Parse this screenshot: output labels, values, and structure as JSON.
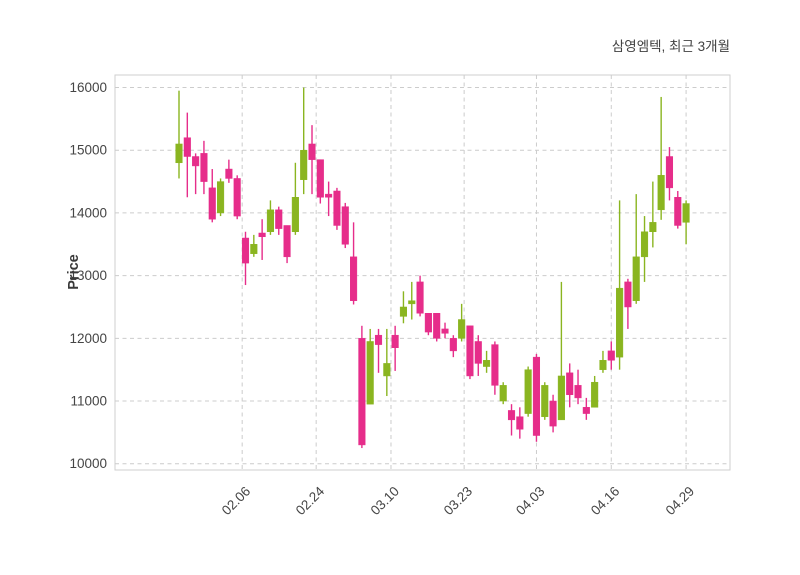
{
  "title": "삼영엠텍, 최근 3개월",
  "y_axis": {
    "label": "Price",
    "ticks": [
      10000,
      11000,
      12000,
      13000,
      14000,
      15000,
      16000
    ]
  },
  "x_axis": {
    "ticks": [
      {
        "label": "02.06",
        "pos": 7.6
      },
      {
        "label": "02.24",
        "pos": 16.5
      },
      {
        "label": "03.10",
        "pos": 25.5
      },
      {
        "label": "03.23",
        "pos": 34.3
      },
      {
        "label": "04.03",
        "pos": 43.0
      },
      {
        "label": "04.16",
        "pos": 52.0
      },
      {
        "label": "04.29",
        "pos": 61.0
      }
    ]
  },
  "chart_data": {
    "type": "candlestick",
    "title": "삼영엠텍, 최근 3개월",
    "ylabel": "Price",
    "ylim": [
      9900,
      16200
    ],
    "grid": "dashed",
    "up_color": "#8ab520",
    "down_color": "#e62d8a",
    "grid_color": "#cccccc",
    "spine_color": "#cfcfcf",
    "candles_ohlc": [
      [
        14800,
        15950,
        14550,
        15100
      ],
      [
        15200,
        15600,
        14250,
        14900
      ],
      [
        14900,
        14950,
        14300,
        14750
      ],
      [
        14950,
        15150,
        14300,
        14500
      ],
      [
        14400,
        14700,
        13850,
        13900
      ],
      [
        14000,
        14550,
        13950,
        14500
      ],
      [
        14700,
        14850,
        14480,
        14550
      ],
      [
        14550,
        14600,
        13900,
        13950
      ],
      [
        13600,
        13700,
        12850,
        13200
      ],
      [
        13350,
        13650,
        13300,
        13500
      ],
      [
        13680,
        13900,
        13250,
        13620
      ],
      [
        13700,
        14200,
        13650,
        14050
      ],
      [
        14050,
        14100,
        13650,
        13750
      ],
      [
        13800,
        13800,
        13200,
        13300
      ],
      [
        13700,
        14800,
        13650,
        14250
      ],
      [
        14530,
        16000,
        14300,
        15000
      ],
      [
        15100,
        15400,
        14300,
        14850
      ],
      [
        14850,
        14850,
        14150,
        14250
      ],
      [
        14300,
        14500,
        13950,
        14250
      ],
      [
        14350,
        14400,
        13730,
        13800
      ],
      [
        14100,
        14160,
        13440,
        13500
      ],
      [
        13300,
        13850,
        12540,
        12600
      ],
      [
        12000,
        12200,
        10250,
        10300
      ],
      [
        10950,
        12150,
        10950,
        11950
      ],
      [
        12050,
        12150,
        11450,
        11900
      ],
      [
        11400,
        12150,
        11080,
        11600
      ],
      [
        12050,
        12200,
        11480,
        11850
      ],
      [
        12350,
        12750,
        12240,
        12500
      ],
      [
        12550,
        12900,
        12300,
        12600
      ],
      [
        12900,
        13000,
        12350,
        12400
      ],
      [
        12400,
        12400,
        12050,
        12100
      ],
      [
        12400,
        12400,
        11950,
        12000
      ],
      [
        12150,
        12250,
        12000,
        12080
      ],
      [
        12000,
        12050,
        11700,
        11800
      ],
      [
        12000,
        12550,
        11950,
        12300
      ],
      [
        12200,
        12200,
        11350,
        11400
      ],
      [
        11950,
        12050,
        11400,
        11600
      ],
      [
        11550,
        11800,
        11450,
        11650
      ],
      [
        11900,
        11950,
        11100,
        11250
      ],
      [
        11000,
        11300,
        10950,
        11250
      ],
      [
        10850,
        10950,
        10450,
        10700
      ],
      [
        10750,
        10900,
        10400,
        10550
      ],
      [
        10800,
        11550,
        10750,
        11500
      ],
      [
        11700,
        11750,
        10350,
        10450
      ],
      [
        10750,
        11300,
        10700,
        11250
      ],
      [
        11000,
        11100,
        10500,
        10600
      ],
      [
        10700,
        12900,
        10700,
        11400
      ],
      [
        11450,
        11600,
        10900,
        11100
      ],
      [
        11250,
        11500,
        10950,
        11050
      ],
      [
        10900,
        11050,
        10700,
        10800
      ],
      [
        10900,
        11400,
        10900,
        11300
      ],
      [
        11500,
        11800,
        11450,
        11650
      ],
      [
        11800,
        11950,
        11500,
        11650
      ],
      [
        11700,
        14200,
        11500,
        12800
      ],
      [
        12900,
        12950,
        12150,
        12500
      ],
      [
        12600,
        14300,
        12550,
        13300
      ],
      [
        13300,
        13950,
        12900,
        13700
      ],
      [
        13700,
        14500,
        13450,
        13850
      ],
      [
        14050,
        15850,
        13890,
        14600
      ],
      [
        14900,
        15050,
        14200,
        14400
      ],
      [
        14250,
        14350,
        13750,
        13800
      ],
      [
        13850,
        14200,
        13500,
        14150
      ]
    ]
  }
}
